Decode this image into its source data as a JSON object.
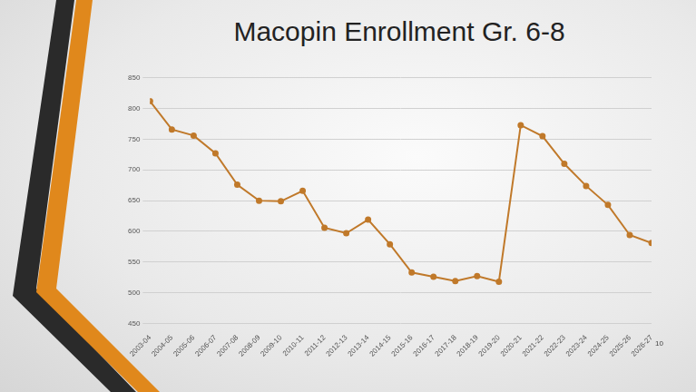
{
  "chart_data": {
    "type": "line",
    "title": "Macopin Enrollment Gr. 6-8",
    "categories": [
      "2003-04",
      "2004-05",
      "2005-06",
      "2006-07",
      "2007-08",
      "2008-09",
      "2009-10",
      "2010-11",
      "2011-12",
      "2012-13",
      "2013-14",
      "2014-15",
      "2015-16",
      "2016-17",
      "2017-18",
      "2018-19",
      "2019-20",
      "2020-21",
      "2021-22",
      "2022-23",
      "2023-24",
      "2024-25",
      "2025-26",
      "2026-27"
    ],
    "values": [
      812,
      766,
      756,
      727,
      676,
      650,
      649,
      666,
      606,
      597,
      619,
      579,
      533,
      526,
      519,
      527,
      518,
      773,
      755,
      710,
      674,
      643,
      594,
      581
    ],
    "color": "#c0792a",
    "marker": "circle",
    "ylim": [
      450,
      850
    ],
    "yticks": [
      450,
      500,
      550,
      600,
      650,
      700,
      750,
      800,
      850
    ],
    "grid": true,
    "annotations": [
      "10"
    ]
  }
}
